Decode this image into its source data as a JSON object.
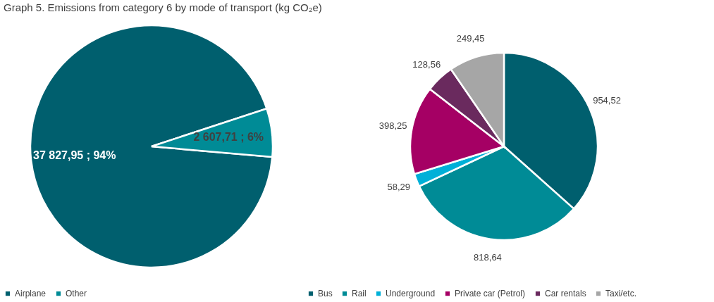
{
  "chart_data": [
    {
      "type": "pie",
      "title": "Graph 5. Emissions from category 6 by mode of transport (kg CO₂e)",
      "categories": [
        "Airplane",
        "Other"
      ],
      "values": [
        37827.95,
        2607.71
      ],
      "colors": [
        "#005f6e",
        "#008b96"
      ],
      "value_labels": [
        "37 827,95 ; 94%",
        "2 607,71 ; 6%"
      ],
      "legend": "bottom"
    },
    {
      "type": "pie",
      "categories": [
        "Bus",
        "Rail",
        "Underground",
        "Private car (Petrol)",
        "Car rentals",
        "Taxi/etc."
      ],
      "values": [
        954.52,
        818.64,
        58.29,
        398.25,
        128.56,
        249.45
      ],
      "colors": [
        "#005f6e",
        "#008b96",
        "#00b0d8",
        "#a50064",
        "#6a2a5e",
        "#a6a6a6"
      ],
      "value_labels": [
        "954,52",
        "818,64",
        "58,29",
        "398,25",
        "128,56",
        "249,45"
      ],
      "legend": "bottom"
    }
  ]
}
